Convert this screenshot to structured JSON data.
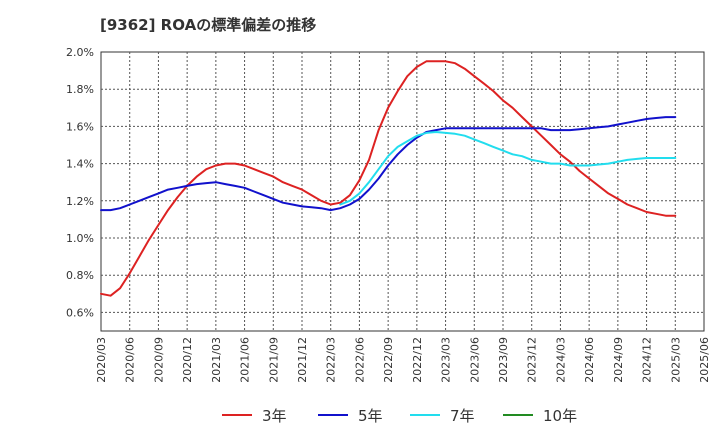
{
  "chart_data": {
    "type": "line",
    "title": "[9362]  ROAの標準偏差の推移",
    "x_ticks": [
      "2020/03",
      "2020/06",
      "2020/09",
      "2020/12",
      "2021/03",
      "2021/06",
      "2021/09",
      "2021/12",
      "2022/03",
      "2022/06",
      "2022/09",
      "2022/12",
      "2023/03",
      "2023/06",
      "2023/09",
      "2023/12",
      "2024/03",
      "2024/06",
      "2024/09",
      "2024/12",
      "2025/03",
      "2025/06"
    ],
    "y_ticks": [
      "2.0%",
      "1.8%",
      "1.6%",
      "1.4%",
      "1.2%",
      "1.0%",
      "0.8%",
      "0.6%"
    ],
    "ylim": [
      0.5,
      2.0
    ],
    "grid": true,
    "legend_position": "bottom",
    "series": [
      {
        "name": "3年",
        "color": "#dd2222",
        "x": [
          "2020/03",
          "2020/04",
          "2020/05",
          "2020/06",
          "2020/07",
          "2020/08",
          "2020/09",
          "2020/10",
          "2020/11",
          "2020/12",
          "2021/01",
          "2021/02",
          "2021/03",
          "2021/04",
          "2021/05",
          "2021/06",
          "2021/07",
          "2021/08",
          "2021/09",
          "2021/10",
          "2021/11",
          "2021/12",
          "2022/01",
          "2022/02",
          "2022/03",
          "2022/04",
          "2022/05",
          "2022/06",
          "2022/07",
          "2022/08",
          "2022/09",
          "2022/10",
          "2022/11",
          "2022/12",
          "2023/01",
          "2023/02",
          "2023/03",
          "2023/04",
          "2023/05",
          "2023/06",
          "2023/07",
          "2023/08",
          "2023/09",
          "2023/10",
          "2023/11",
          "2023/12",
          "2024/01",
          "2024/02",
          "2024/03",
          "2024/04",
          "2024/05",
          "2024/06",
          "2024/07",
          "2024/08",
          "2024/09",
          "2024/10",
          "2024/11",
          "2024/12",
          "2025/01",
          "2025/02",
          "2025/03"
        ],
        "values": [
          0.7,
          0.69,
          0.73,
          0.81,
          0.9,
          0.99,
          1.07,
          1.15,
          1.22,
          1.28,
          1.33,
          1.37,
          1.39,
          1.4,
          1.4,
          1.39,
          1.37,
          1.35,
          1.33,
          1.3,
          1.28,
          1.26,
          1.23,
          1.2,
          1.18,
          1.19,
          1.23,
          1.31,
          1.42,
          1.58,
          1.7,
          1.79,
          1.87,
          1.92,
          1.95,
          1.95,
          1.95,
          1.94,
          1.91,
          1.87,
          1.83,
          1.79,
          1.74,
          1.7,
          1.65,
          1.6,
          1.55,
          1.5,
          1.45,
          1.41,
          1.36,
          1.32,
          1.28,
          1.24,
          1.21,
          1.18,
          1.16,
          1.14,
          1.13,
          1.12,
          1.12
        ]
      },
      {
        "name": "5年",
        "color": "#1111cc",
        "x": [
          "2020/03",
          "2020/04",
          "2020/05",
          "2020/06",
          "2020/07",
          "2020/08",
          "2020/09",
          "2020/10",
          "2020/11",
          "2020/12",
          "2021/01",
          "2021/02",
          "2021/03",
          "2021/04",
          "2021/05",
          "2021/06",
          "2021/07",
          "2021/08",
          "2021/09",
          "2021/10",
          "2021/11",
          "2021/12",
          "2022/01",
          "2022/02",
          "2022/03",
          "2022/04",
          "2022/05",
          "2022/06",
          "2022/07",
          "2022/08",
          "2022/09",
          "2022/10",
          "2022/11",
          "2022/12",
          "2023/01",
          "2023/02",
          "2023/03",
          "2023/04",
          "2023/05",
          "2023/06",
          "2023/07",
          "2023/08",
          "2023/09",
          "2023/10",
          "2023/11",
          "2023/12",
          "2024/01",
          "2024/02",
          "2024/03",
          "2024/04",
          "2024/05",
          "2024/06",
          "2024/07",
          "2024/08",
          "2024/09",
          "2024/10",
          "2024/11",
          "2024/12",
          "2025/01",
          "2025/02",
          "2025/03"
        ],
        "values": [
          1.15,
          1.15,
          1.16,
          1.18,
          1.2,
          1.22,
          1.24,
          1.26,
          1.27,
          1.28,
          1.29,
          1.295,
          1.3,
          1.29,
          1.28,
          1.27,
          1.25,
          1.23,
          1.21,
          1.19,
          1.18,
          1.17,
          1.165,
          1.16,
          1.15,
          1.16,
          1.18,
          1.21,
          1.26,
          1.32,
          1.39,
          1.45,
          1.5,
          1.54,
          1.57,
          1.58,
          1.59,
          1.59,
          1.59,
          1.59,
          1.59,
          1.59,
          1.59,
          1.59,
          1.59,
          1.59,
          1.59,
          1.58,
          1.58,
          1.58,
          1.585,
          1.59,
          1.595,
          1.6,
          1.61,
          1.62,
          1.63,
          1.64,
          1.645,
          1.65,
          1.65
        ]
      },
      {
        "name": "7年",
        "color": "#22ddee",
        "x": [
          "2022/04",
          "2022/05",
          "2022/06",
          "2022/07",
          "2022/08",
          "2022/09",
          "2022/10",
          "2022/11",
          "2022/12",
          "2023/01",
          "2023/02",
          "2023/03",
          "2023/04",
          "2023/05",
          "2023/06",
          "2023/07",
          "2023/08",
          "2023/09",
          "2023/10",
          "2023/11",
          "2023/12",
          "2024/01",
          "2024/02",
          "2024/03",
          "2024/04",
          "2024/05",
          "2024/06",
          "2024/07",
          "2024/08",
          "2024/09",
          "2024/10",
          "2024/11",
          "2024/12",
          "2025/01",
          "2025/02",
          "2025/03"
        ],
        "values": [
          1.18,
          1.2,
          1.24,
          1.3,
          1.37,
          1.44,
          1.49,
          1.52,
          1.55,
          1.565,
          1.57,
          1.565,
          1.56,
          1.55,
          1.53,
          1.51,
          1.49,
          1.47,
          1.45,
          1.44,
          1.42,
          1.41,
          1.4,
          1.4,
          1.39,
          1.39,
          1.39,
          1.395,
          1.4,
          1.41,
          1.42,
          1.425,
          1.43,
          1.43,
          1.43,
          1.43
        ]
      },
      {
        "name": "10年",
        "color": "#228b22",
        "x": [],
        "values": []
      }
    ]
  }
}
